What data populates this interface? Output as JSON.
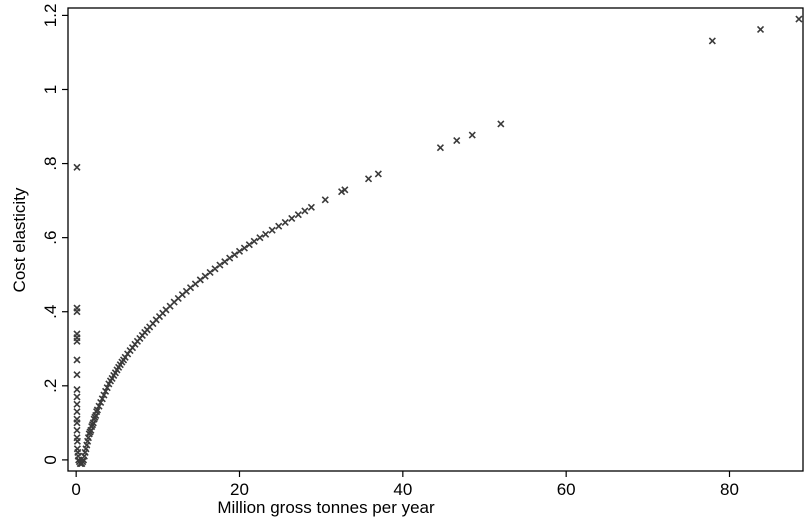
{
  "chart_data": {
    "type": "scatter",
    "xlabel": "Million gross tonnes per year",
    "ylabel": "Cost elasticity",
    "xlim": [
      -1,
      89
    ],
    "ylim": [
      -0.03,
      1.22
    ],
    "x_ticks": [
      0,
      20,
      40,
      60,
      80
    ],
    "x_tick_labels": [
      "0",
      "20",
      "40",
      "60",
      "80"
    ],
    "y_ticks": [
      0,
      0.2,
      0.4,
      0.6,
      0.8,
      1.0,
      1.2
    ],
    "y_tick_labels": [
      "0",
      ".2",
      ".4",
      ".6",
      ".8",
      "1",
      "1.2"
    ],
    "grid": false,
    "legend": "none",
    "marker": "x",
    "marker_color": "#3a3a3a",
    "points": [
      [
        0.1,
        0.79
      ],
      [
        0.1,
        0.41
      ],
      [
        0.1,
        0.4
      ],
      [
        0.1,
        0.34
      ],
      [
        0.1,
        0.33
      ],
      [
        0.1,
        0.32
      ],
      [
        0.1,
        0.27
      ],
      [
        0.1,
        0.23
      ],
      [
        0.1,
        0.19
      ],
      [
        0.1,
        0.17
      ],
      [
        0.1,
        0.15
      ],
      [
        0.1,
        0.13
      ],
      [
        0.1,
        0.11
      ],
      [
        0.1,
        0.1
      ],
      [
        0.1,
        0.08
      ],
      [
        0.1,
        0.06
      ],
      [
        0.15,
        0.05
      ],
      [
        0.15,
        0.03
      ],
      [
        0.2,
        0.02
      ],
      [
        0.25,
        0.01
      ],
      [
        0.3,
        0.0
      ],
      [
        0.4,
        -0.005
      ],
      [
        0.5,
        -0.01
      ],
      [
        0.6,
        -0.01
      ],
      [
        0.7,
        -0.01
      ],
      [
        0.8,
        -0.005
      ],
      [
        0.9,
        0.0
      ],
      [
        1.0,
        0.01
      ],
      [
        1.1,
        0.02
      ],
      [
        1.2,
        0.03
      ],
      [
        1.3,
        0.04
      ],
      [
        1.4,
        0.05
      ],
      [
        1.5,
        0.06
      ],
      [
        1.6,
        0.07
      ],
      [
        1.7,
        0.075
      ],
      [
        1.8,
        0.08
      ],
      [
        1.9,
        0.09
      ],
      [
        2.0,
        0.095
      ],
      [
        2.1,
        0.1
      ],
      [
        2.2,
        0.11
      ],
      [
        2.3,
        0.115
      ],
      [
        2.4,
        0.12
      ],
      [
        2.5,
        0.13
      ],
      [
        2.6,
        0.135
      ],
      [
        2.8,
        0.145
      ],
      [
        3.0,
        0.155
      ],
      [
        3.2,
        0.165
      ],
      [
        3.4,
        0.175
      ],
      [
        3.6,
        0.185
      ],
      [
        3.8,
        0.195
      ],
      [
        4.0,
        0.205
      ],
      [
        4.2,
        0.213
      ],
      [
        4.4,
        0.22
      ],
      [
        4.6,
        0.228
      ],
      [
        4.8,
        0.235
      ],
      [
        5.0,
        0.243
      ],
      [
        5.2,
        0.25
      ],
      [
        5.4,
        0.257
      ],
      [
        5.6,
        0.264
      ],
      [
        5.8,
        0.27
      ],
      [
        6.0,
        0.277
      ],
      [
        6.3,
        0.286
      ],
      [
        6.6,
        0.295
      ],
      [
        6.9,
        0.303
      ],
      [
        7.2,
        0.312
      ],
      [
        7.5,
        0.32
      ],
      [
        7.8,
        0.328
      ],
      [
        8.1,
        0.336
      ],
      [
        8.4,
        0.344
      ],
      [
        8.7,
        0.351
      ],
      [
        9.0,
        0.359
      ],
      [
        9.4,
        0.368
      ],
      [
        9.8,
        0.378
      ],
      [
        10.2,
        0.387
      ],
      [
        10.6,
        0.396
      ],
      [
        11.0,
        0.405
      ],
      [
        11.5,
        0.415
      ],
      [
        12.0,
        0.426
      ],
      [
        12.5,
        0.436
      ],
      [
        13.0,
        0.446
      ],
      [
        13.5,
        0.455
      ],
      [
        14.0,
        0.465
      ],
      [
        14.6,
        0.475
      ],
      [
        15.2,
        0.486
      ],
      [
        15.8,
        0.496
      ],
      [
        16.4,
        0.506
      ],
      [
        17.0,
        0.516
      ],
      [
        17.6,
        0.526
      ],
      [
        18.2,
        0.535
      ],
      [
        18.8,
        0.545
      ],
      [
        19.4,
        0.554
      ],
      [
        20.0,
        0.563
      ],
      [
        20.6,
        0.572
      ],
      [
        21.2,
        0.581
      ],
      [
        21.8,
        0.59
      ],
      [
        22.5,
        0.6
      ],
      [
        23.2,
        0.609
      ],
      [
        24.0,
        0.62
      ],
      [
        24.8,
        0.631
      ],
      [
        25.6,
        0.641
      ],
      [
        26.4,
        0.652
      ],
      [
        27.2,
        0.662
      ],
      [
        28.0,
        0.672
      ],
      [
        28.8,
        0.682
      ],
      [
        30.5,
        0.702
      ],
      [
        32.5,
        0.724
      ],
      [
        32.9,
        0.729
      ],
      [
        35.8,
        0.759
      ],
      [
        37.0,
        0.772
      ],
      [
        44.6,
        0.843
      ],
      [
        46.6,
        0.862
      ],
      [
        48.5,
        0.877
      ],
      [
        52.0,
        0.907
      ],
      [
        77.9,
        1.131
      ],
      [
        83.8,
        1.162
      ],
      [
        88.5,
        1.19
      ]
    ]
  }
}
